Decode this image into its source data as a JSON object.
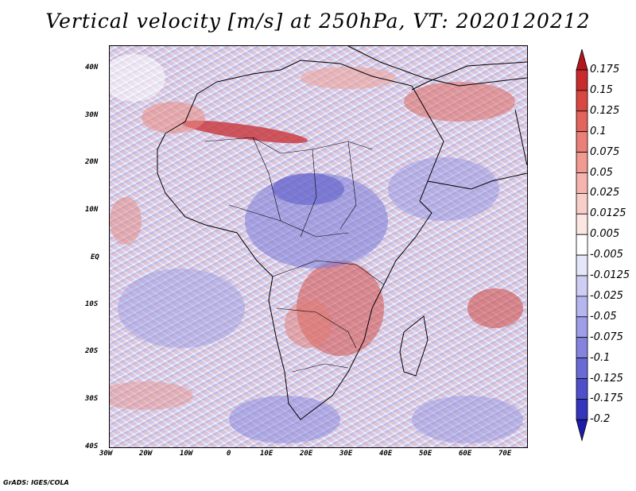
{
  "title": "Vertical velocity [m/s] at 250hPa, VT: 2020120212",
  "credit": "GrADS: IGES/COLA",
  "lat_labels": [
    "40N",
    "30N",
    "20N",
    "10N",
    "EQ",
    "10S",
    "20S",
    "30S",
    "40S"
  ],
  "lon_labels": [
    "30W",
    "20W",
    "10W",
    "0",
    "10E",
    "20E",
    "30E",
    "40E",
    "50E",
    "60E",
    "70E"
  ],
  "colorbar": {
    "labels": [
      "0.175",
      "0.15",
      "0.125",
      "0.1",
      "0.075",
      "0.05",
      "0.025",
      "0.0125",
      "0.005",
      "-0.005",
      "-0.0125",
      "-0.025",
      "-0.05",
      "-0.075",
      "-0.1",
      "-0.125",
      "-0.175",
      "-0.2"
    ],
    "colors": [
      "#b5161c",
      "#c92a2e",
      "#d84840",
      "#e2645c",
      "#ea8078",
      "#f09a92",
      "#f5b4ad",
      "#f9cec9",
      "#fce6e3",
      "#ffffff",
      "#e6e6fb",
      "#ceceF5",
      "#b6b6ef",
      "#9d9de8",
      "#8484df",
      "#6a6ad6",
      "#4f4fcb",
      "#3434bd",
      "#1c1caa"
    ]
  }
}
